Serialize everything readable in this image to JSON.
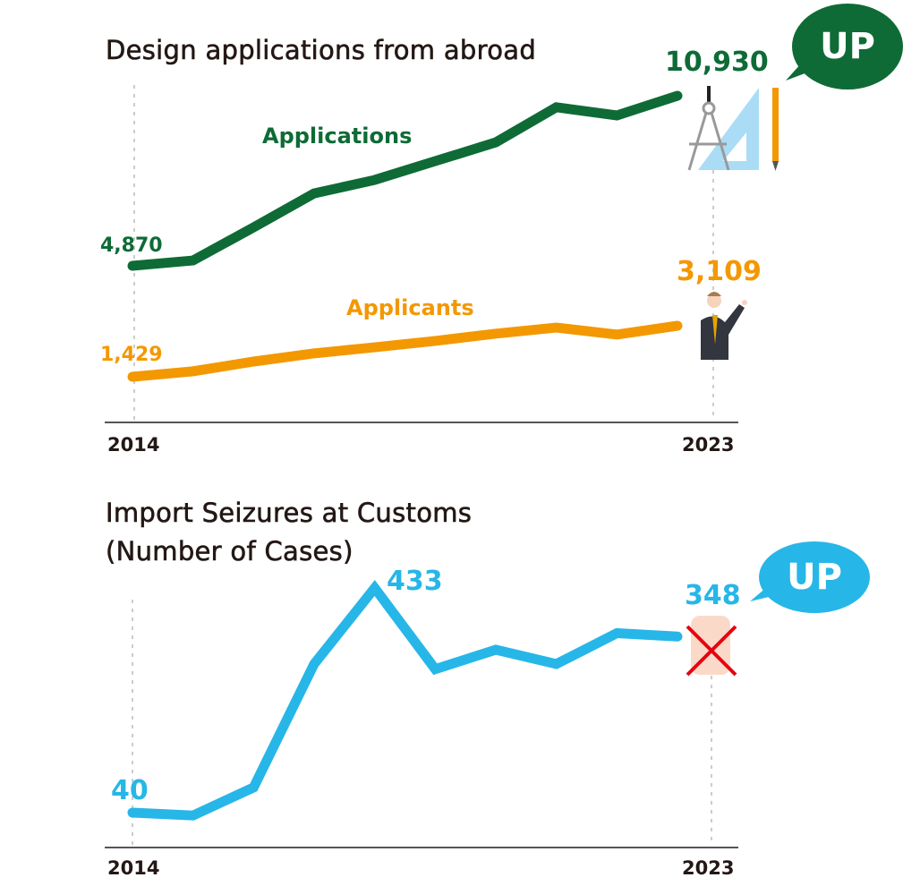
{
  "colors": {
    "applications": "#0e6b36",
    "applicants": "#f39800",
    "seizures": "#27b6e8",
    "axis": "#555555"
  },
  "chart_data": [
    {
      "type": "line",
      "title": "Design applications from abroad",
      "x": [
        2014,
        2015,
        2016,
        2017,
        2018,
        2019,
        2020,
        2021,
        2022,
        2023
      ],
      "x_tick_labels": [
        "2014",
        "2023"
      ],
      "series": [
        {
          "name": "Applications",
          "values": [
            4870,
            5060,
            6240,
            7450,
            7930,
            8600,
            9270,
            10520,
            10230,
            10930
          ],
          "start_label": "4,870",
          "end_label": "10,930"
        },
        {
          "name": "Applicants",
          "values": [
            1429,
            1610,
            1930,
            2200,
            2400,
            2610,
            2850,
            3050,
            2820,
            3109
          ],
          "start_label": "1,429",
          "end_label": "3,109"
        }
      ],
      "badge": "UP",
      "icons": [
        "drafting-tools-icon",
        "businessman-icon"
      ]
    },
    {
      "type": "line",
      "title": "Import Seizures at Customs",
      "subtitle": "(Number of Cases)",
      "x": [
        2014,
        2015,
        2016,
        2017,
        2018,
        2019,
        2020,
        2021,
        2022,
        2023
      ],
      "x_tick_labels": [
        "2014",
        "2023"
      ],
      "series": [
        {
          "name": "Import Seizures",
          "values": [
            40,
            35,
            84,
            300,
            433,
            291,
            325,
            300,
            354,
            348
          ],
          "start_label": "40",
          "peak_label": "433",
          "end_label": "348"
        }
      ],
      "badge": "UP",
      "icons": [
        "stop-hand-icon"
      ]
    }
  ]
}
